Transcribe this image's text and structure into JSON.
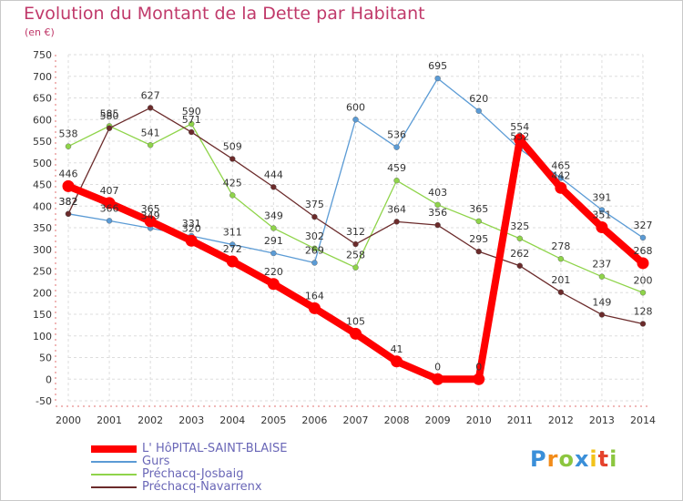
{
  "chart_data": {
    "type": "line",
    "title": "Evolution du Montant de la Dette par Habitant",
    "subtitle": "(en €)",
    "xlabel": "",
    "ylabel": "",
    "x": [
      "2000",
      "2001",
      "2002",
      "2003",
      "2004",
      "2005",
      "2006",
      "2007",
      "2008",
      "2009",
      "2010",
      "2011",
      "2012",
      "2013",
      "2014"
    ],
    "ylim": [
      -50,
      750
    ],
    "yticks": [
      -50,
      0,
      50,
      100,
      150,
      200,
      250,
      300,
      350,
      400,
      450,
      500,
      550,
      600,
      650,
      700,
      750
    ],
    "grid": true,
    "legend_position": "bottom-left",
    "series": [
      {
        "name": "L' HôPITAL-SAINT-BLAISE",
        "color": "#ff0000",
        "values": [
          446,
          407,
          365,
          320,
          272,
          220,
          164,
          105,
          41,
          0,
          0,
          554,
          442,
          351,
          268
        ]
      },
      {
        "name": "Gurs",
        "color": "#5b9bd5",
        "values": [
          382,
          366,
          349,
          331,
          311,
          291,
          269,
          600,
          536,
          695,
          620,
          532,
          465,
          391,
          327
        ]
      },
      {
        "name": "Préchacq-Josbaig",
        "color": "#8fd44a",
        "values": [
          538,
          585,
          541,
          590,
          425,
          349,
          302,
          258,
          459,
          403,
          365,
          325,
          278,
          237,
          200
        ]
      },
      {
        "name": "Préchacq-Navarrenx",
        "color": "#6b2b2b",
        "values": [
          382,
          580,
          627,
          571,
          509,
          444,
          375,
          312,
          364,
          356,
          295,
          262,
          201,
          149,
          128
        ]
      }
    ]
  },
  "logo": {
    "letters": [
      "P",
      "r",
      "o",
      "x",
      "i",
      "t",
      "i"
    ],
    "colors": [
      "#3a8fd9",
      "#f28c1a",
      "#8cc63f",
      "#3a8fd9",
      "#f2c31a",
      "#e5432d",
      "#8cc63f"
    ]
  }
}
